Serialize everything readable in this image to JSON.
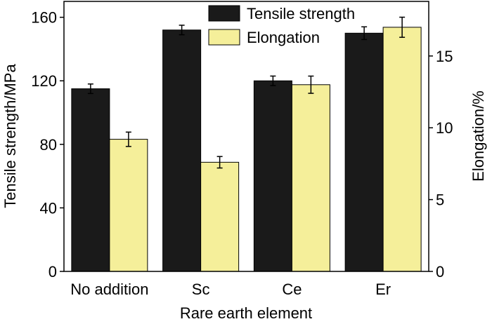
{
  "chart_data": {
    "type": "bar",
    "title": "",
    "xlabel": "Rare earth element",
    "ylabel_left": "Tensile strength/MPa",
    "ylabel_right": "Elongation/%",
    "categories": [
      "No addition",
      "Sc",
      "Ce",
      "Er"
    ],
    "ylim_left": [
      0,
      170
    ],
    "ylim_right": [
      0,
      18.8
    ],
    "yticks_left": [
      "0",
      "40",
      "80",
      "120",
      "160"
    ],
    "yticks_right": [
      "0",
      "5",
      "10",
      "15"
    ],
    "series": [
      {
        "name": "Tensile strength",
        "axis": "left",
        "color": "#1a1a1a",
        "values": [
          115,
          152,
          120,
          150
        ],
        "errors": [
          3,
          3,
          3,
          4
        ]
      },
      {
        "name": "Elongation",
        "axis": "right",
        "color": "#f5ef9a",
        "values": [
          9.2,
          7.6,
          13.0,
          17.0
        ],
        "errors": [
          0.5,
          0.4,
          0.6,
          0.7
        ]
      }
    ],
    "legend_position": "top",
    "grid": false
  }
}
